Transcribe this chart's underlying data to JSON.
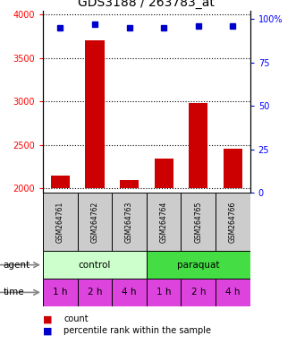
{
  "title": "GDS3188 / 263783_at",
  "samples": [
    "GSM264761",
    "GSM264762",
    "GSM264763",
    "GSM264764",
    "GSM264765",
    "GSM264766"
  ],
  "counts": [
    2150,
    3700,
    2100,
    2340,
    2980,
    2460
  ],
  "percentiles": [
    95,
    97,
    95,
    95,
    96,
    96
  ],
  "ylim_left": [
    1950,
    4050
  ],
  "ylim_right": [
    0,
    105
  ],
  "yticks_left": [
    2000,
    2500,
    3000,
    3500,
    4000
  ],
  "yticks_right": [
    0,
    25,
    50,
    75,
    100
  ],
  "bar_color": "#cc0000",
  "dot_color": "#0000cc",
  "agent_labels": [
    "control",
    "paraquat"
  ],
  "time_labels": [
    "1 h",
    "2 h",
    "4 h",
    "1 h",
    "2 h",
    "4 h"
  ],
  "control_color": "#ccffcc",
  "paraquat_color": "#44dd44",
  "time_color": "#dd44dd",
  "sample_bg_color": "#cccccc",
  "title_fontsize": 10,
  "tick_fontsize": 7,
  "sample_fontsize": 5.5,
  "row_fontsize": 7.5,
  "legend_fontsize": 7
}
